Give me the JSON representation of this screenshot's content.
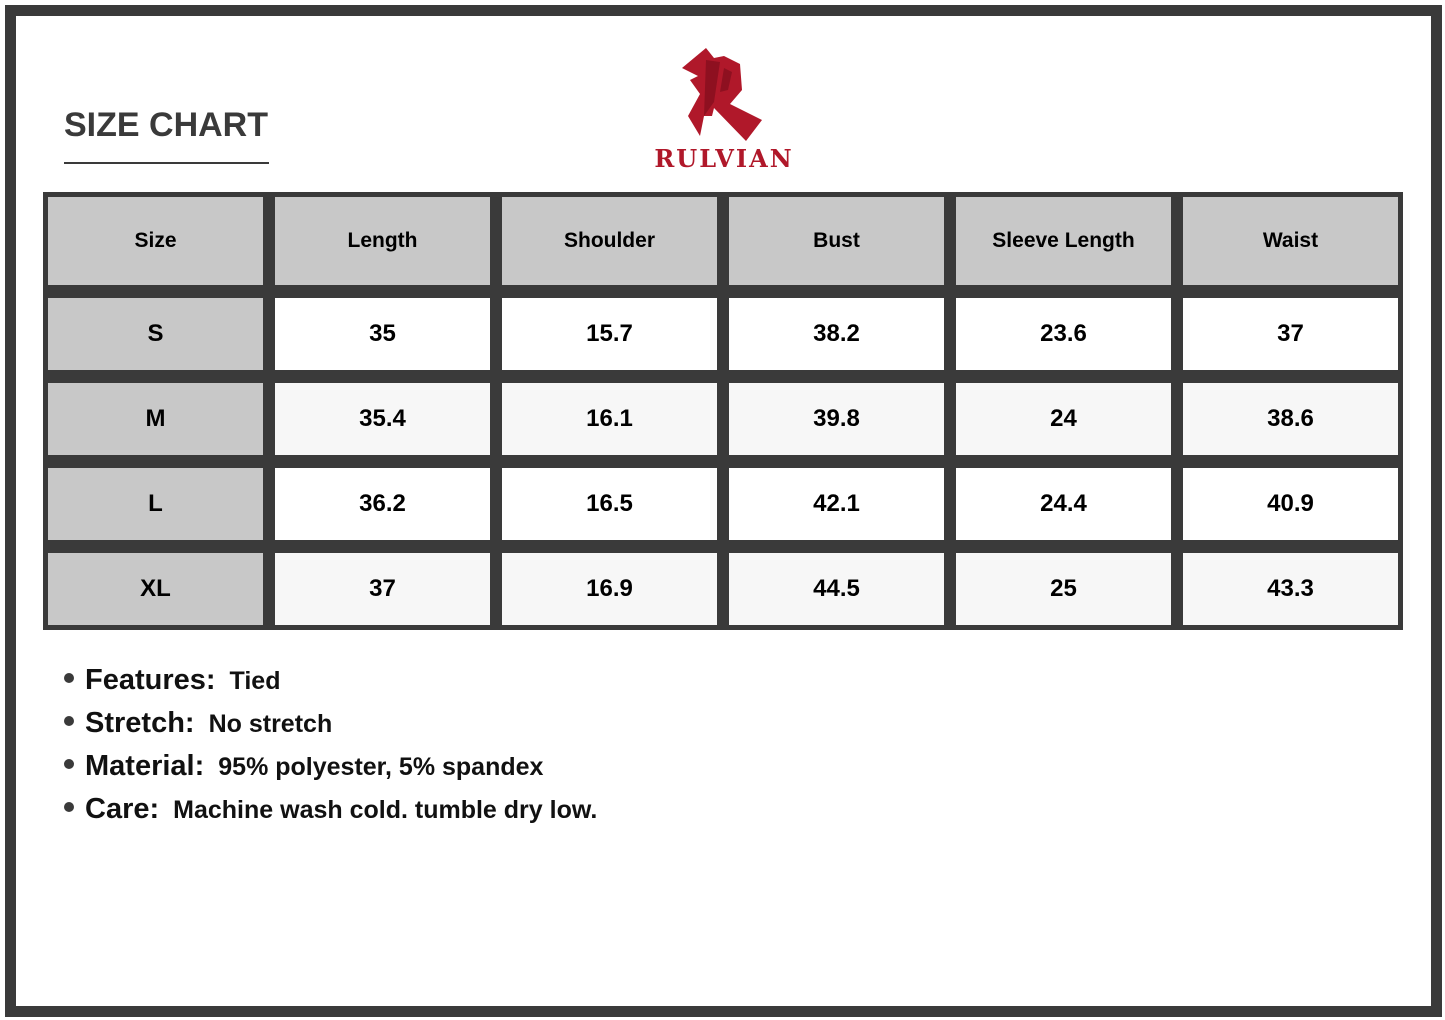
{
  "title": "SIZE CHART",
  "brand": {
    "name": "RULVIAN",
    "color": "#b0182a"
  },
  "table": {
    "headers": [
      "Size",
      "Length",
      "Shoulder",
      "Bust",
      "Sleeve Length",
      "Waist"
    ],
    "rows": [
      [
        "S",
        "35",
        "15.7",
        "38.2",
        "23.6",
        "37"
      ],
      [
        "M",
        "35.4",
        "16.1",
        "39.8",
        "24",
        "38.6"
      ],
      [
        "L",
        "36.2",
        "16.5",
        "42.1",
        "24.4",
        "40.9"
      ],
      [
        "XL",
        "37",
        "16.9",
        "44.5",
        "25",
        "43.3"
      ]
    ]
  },
  "features": [
    {
      "label": "Features:",
      "value": "Tied"
    },
    {
      "label": "Stretch:",
      "value": "No stretch"
    },
    {
      "label": "Material:",
      "value": "95% polyester, 5% spandex"
    },
    {
      "label": "Care:",
      "value": "Machine wash cold. tumble dry low."
    }
  ]
}
